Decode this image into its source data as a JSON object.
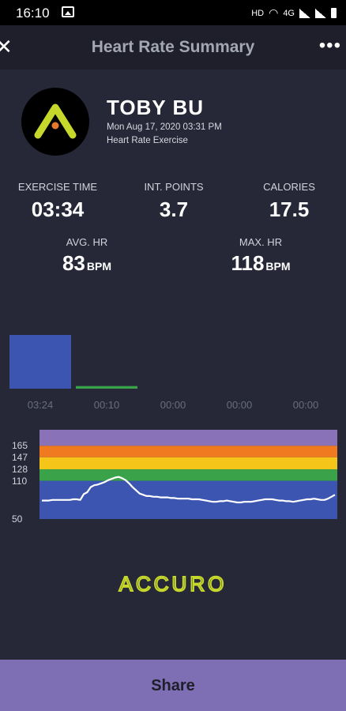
{
  "status": {
    "time": "16:10",
    "network": "HD",
    "lte": "4G"
  },
  "header": {
    "title": "Heart Rate Summary",
    "close_icon": "close-icon",
    "more_icon": "more-vert-icon"
  },
  "profile": {
    "name": "TOBY BU",
    "date": "Mon Aug 17, 2020 03:31 PM",
    "type": "Heart Rate Exercise",
    "logo_colors": {
      "bg": "#000000",
      "mark": "#c5d82b",
      "dot": "#e57a2c"
    }
  },
  "stats": {
    "exercise_time": {
      "label": "EXERCISE TIME",
      "value": "03:34"
    },
    "int_points": {
      "label": "INT. POINTS",
      "value": "3.7"
    },
    "calories": {
      "label": "CALORIES",
      "value": "17.5"
    },
    "avg_hr": {
      "label": "AVG. HR",
      "value": "83",
      "unit": "BPM"
    },
    "max_hr": {
      "label": "MAX. HR",
      "value": "118",
      "unit": "BPM"
    }
  },
  "chart_data": [
    {
      "type": "bar",
      "categories": [
        "03:24",
        "00:10",
        "00:00",
        "00:00",
        "00:00"
      ],
      "values": [
        204,
        10,
        0,
        0,
        0
      ],
      "colors": [
        "#3b55b0",
        "#3aa34a",
        "#f6c51a",
        "#f07a20",
        "#8a72b8"
      ]
    },
    {
      "type": "area",
      "y_ticks": [
        165,
        147,
        128,
        110,
        50
      ],
      "zones": [
        {
          "from": 50,
          "to": 110,
          "color": "#3b55b0"
        },
        {
          "from": 110,
          "to": 128,
          "color": "#3aa34a"
        },
        {
          "from": 128,
          "to": 147,
          "color": "#f6c51a"
        },
        {
          "from": 147,
          "to": 165,
          "color": "#f07a20"
        },
        {
          "from": 165,
          "to": 190,
          "color": "#8a72b8"
        }
      ],
      "ylim": [
        50,
        190
      ],
      "series": [
        {
          "values": [
            79,
            79,
            79,
            80,
            80,
            80,
            80,
            80,
            80,
            81,
            81,
            80,
            89,
            92,
            100,
            103,
            104,
            106,
            108,
            111,
            113,
            115,
            116,
            114,
            111,
            106,
            100,
            95,
            90,
            88,
            86,
            86,
            85,
            85,
            84,
            84,
            84,
            83,
            83,
            82,
            82,
            82,
            82,
            81,
            81,
            81,
            80,
            79,
            78,
            77,
            77,
            78,
            78,
            79,
            78,
            77,
            76,
            76,
            77,
            77,
            77,
            78,
            79,
            80,
            81,
            81,
            81,
            80,
            79,
            79,
            78,
            78,
            77,
            78,
            79,
            80,
            81,
            81,
            82,
            81,
            80,
            80,
            82,
            85,
            88
          ]
        }
      ]
    }
  ],
  "brand": {
    "logo_text": "ACCURO",
    "color": "#c5d82b"
  },
  "footer": {
    "share_label": "Share"
  }
}
